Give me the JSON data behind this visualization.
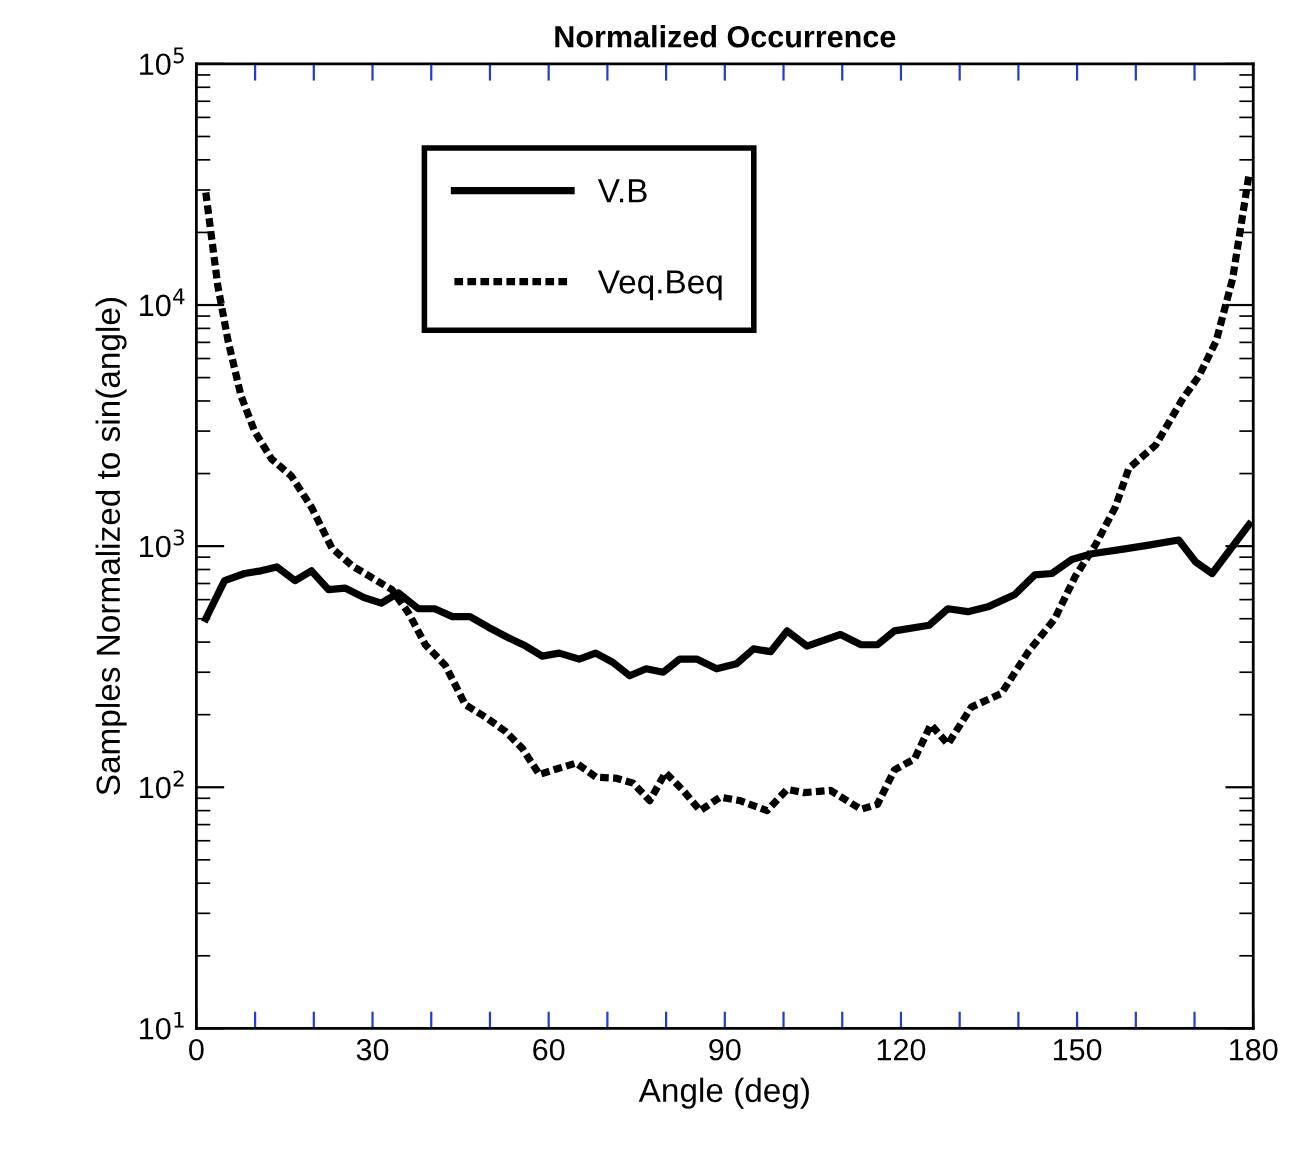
{
  "chart_data": {
    "type": "line",
    "title": "Normalized Occurrence",
    "xlabel": "Angle (deg)",
    "ylabel": "Samples Normalized to sin(angle)",
    "log": "y",
    "xlim": [
      0,
      180
    ],
    "ylim": [
      10,
      100000
    ],
    "xticks": [
      0,
      {
        "value": 10,
        "label": null
      },
      {
        "value": 20,
        "label": null
      },
      30,
      {
        "value": 40,
        "label": null
      },
      {
        "value": 50,
        "label": null
      },
      60,
      {
        "value": 70,
        "label": null
      },
      {
        "value": 80,
        "label": null
      },
      90,
      {
        "value": 100,
        "label": null
      },
      {
        "value": 110,
        "label": null
      },
      120,
      {
        "value": 130,
        "label": null
      },
      {
        "value": 140,
        "label": null
      },
      150,
      {
        "value": 160,
        "label": null
      },
      {
        "value": 170,
        "label": null
      },
      180
    ],
    "yticks": [
      {
        "value": 10,
        "label": "10$^{1}$"
      },
      {
        "value": 100,
        "label": "10$^{2}$"
      },
      {
        "value": 1000,
        "label": "10$^{3}$"
      },
      {
        "value": 10000,
        "label": "10$^{4}$"
      },
      {
        "value": 100000,
        "label": "10$^{5}$"
      }
    ],
    "grid": false,
    "legend": "top left",
    "series": [
      {
        "name": "V.B",
        "color": "#000000",
        "line_style": "solid",
        "x": [
          1.6,
          4.8,
          8.2,
          11,
          13.7,
          16.8,
          19.6,
          22.5,
          25.3,
          28.7,
          31.5,
          34.4,
          37.8,
          40.6,
          43.6,
          46.6,
          49.8,
          53.3,
          56.1,
          58.9,
          61.8,
          65.2,
          68,
          70.9,
          73.8,
          76.6,
          79.5,
          82.3,
          85.2,
          88.6,
          92,
          94.9,
          97.8,
          100.6,
          104,
          109.7,
          113.2,
          116,
          118.9,
          124.8,
          128,
          131.4,
          134.8,
          139.4,
          142.8,
          145.7,
          149.1,
          152.5,
          157.6,
          162.2,
          167.3,
          170.2,
          173,
          179.3
        ],
        "values": [
          500,
          720,
          770,
          790,
          820,
          720,
          790,
          660,
          670,
          610,
          580,
          640,
          550,
          550,
          510,
          510,
          460,
          415,
          385,
          350,
          360,
          340,
          360,
          330,
          290,
          310,
          300,
          340,
          340,
          310,
          325,
          375,
          365,
          445,
          385,
          430,
          390,
          390,
          445,
          470,
          550,
          535,
          560,
          630,
          760,
          770,
          880,
          930,
          970,
          1010,
          1060,
          860,
          770,
          1230
        ]
      },
      {
        "name": "Veq.Beq",
        "color": "#000000",
        "line_style": "dotted",
        "x": [
          1.6,
          3.65,
          5.4,
          7.6,
          9.9,
          12.8,
          16.2,
          19.6,
          23.1,
          26.5,
          29.9,
          33.3,
          36.2,
          39,
          42.4,
          45.8,
          49.3,
          52.7,
          55.5,
          58.4,
          61.3,
          64.7,
          68.1,
          71.5,
          74.4,
          77.2,
          79.9,
          82.9,
          85.8,
          89.2,
          92.6,
          97.2,
          100.6,
          103.5,
          108,
          113.2,
          116,
          118.9,
          122.3,
          125.1,
          128,
          132,
          137.1,
          141.7,
          146.2,
          149.7,
          153.1,
          156.5,
          158.8,
          163.4,
          167.9,
          170.8,
          173.7,
          176.5,
          179.3
        ],
        "values": [
          29300,
          12000,
          7100,
          4200,
          3000,
          2300,
          1950,
          1450,
          980,
          830,
          740,
          660,
          525,
          390,
          320,
          220,
          195,
          170,
          145,
          113,
          119,
          126,
          110,
          109,
          104,
          88,
          115,
          97,
          80,
          91,
          88,
          80,
          98,
          95,
          97,
          81,
          85,
          118,
          131,
          182,
          151,
          215,
          245,
          365,
          500,
          750,
          1010,
          1450,
          2100,
          2630,
          4050,
          5100,
          7100,
          12900,
          35000
        ]
      }
    ]
  }
}
